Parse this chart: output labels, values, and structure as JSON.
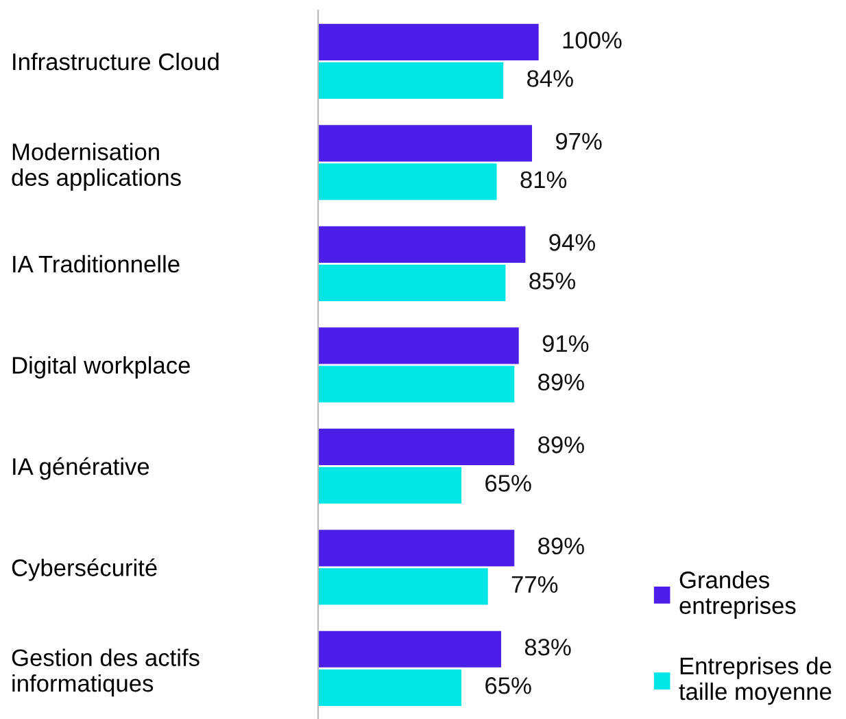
{
  "chart_data": {
    "type": "bar",
    "orientation": "horizontal",
    "categories": [
      "Infrastructure Cloud",
      "Modernisation\ndes applications",
      "IA Traditionnelle",
      "Digital workplace",
      "IA générative",
      "Cybersécurité",
      "Gestion des actifs\ninformatiques"
    ],
    "series": [
      {
        "name": "Grandes\nentreprises",
        "color": "#4b1fe8",
        "values": [
          100,
          97,
          94,
          91,
          89,
          89,
          83
        ],
        "value_labels": [
          "100%",
          "97%",
          "94%",
          "91%",
          "89%",
          "89%",
          "83%"
        ]
      },
      {
        "name": "Entreprises de\ntaille moyenne",
        "color": "#00e6e6",
        "values": [
          84,
          81,
          85,
          89,
          65,
          77,
          65
        ],
        "value_labels": [
          "84%",
          "81%",
          "85%",
          "89%",
          "65%",
          "77%",
          "65%"
        ]
      }
    ],
    "legend": "bottom right",
    "grid": false
  }
}
